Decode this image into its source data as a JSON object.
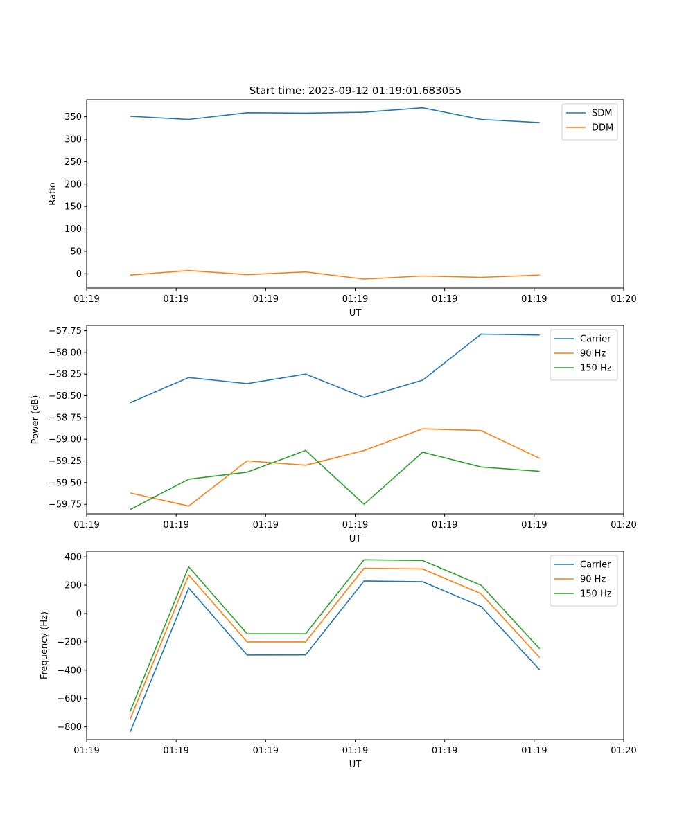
{
  "figure_title": "Start time: 2023-09-12 01:19:01.683055",
  "chart_data": [
    {
      "type": "line",
      "ylabel": "Ratio",
      "xlabel": "UT",
      "xlim": [
        0,
        9
      ],
      "ylim": [
        -32,
        388
      ],
      "yticks": [
        0,
        50,
        100,
        150,
        200,
        250,
        300,
        350
      ],
      "ytick_labels": [
        "0",
        "50",
        "100",
        "150",
        "200",
        "250",
        "300",
        "350"
      ],
      "xticks": [
        0,
        1.5,
        3,
        4.5,
        6,
        7.5,
        9
      ],
      "xtick_labels": [
        "01:19",
        "01:19",
        "01:19",
        "01:19",
        "01:19",
        "01:19",
        "01:20"
      ],
      "x": [
        0.73,
        1.71,
        2.69,
        3.67,
        4.65,
        5.63,
        6.61,
        7.59
      ],
      "legend_position": "top-right",
      "series": [
        {
          "name": "SDM",
          "color": "#1f77b4",
          "values": [
            351,
            344,
            359,
            358,
            360,
            370,
            344,
            337
          ]
        },
        {
          "name": "DDM",
          "color": "#ff7f0e",
          "values": [
            -3,
            7,
            -2,
            4,
            -12,
            -5,
            -8,
            -3
          ]
        }
      ]
    },
    {
      "type": "line",
      "ylabel": "Power (dB)",
      "xlabel": "UT",
      "xlim": [
        0,
        9
      ],
      "ylim": [
        -59.86,
        -57.69
      ],
      "yticks": [
        -59.75,
        -59.5,
        -59.25,
        -59.0,
        -58.75,
        -58.5,
        -58.25,
        -58.0,
        -57.75
      ],
      "ytick_labels": [
        "−59.75",
        "−59.50",
        "−59.25",
        "−59.00",
        "−58.75",
        "−58.50",
        "−58.25",
        "−58.00",
        "−57.75"
      ],
      "xticks": [
        0,
        1.5,
        3,
        4.5,
        6,
        7.5,
        9
      ],
      "xtick_labels": [
        "01:19",
        "01:19",
        "01:19",
        "01:19",
        "01:19",
        "01:19",
        "01:20"
      ],
      "x": [
        0.73,
        1.71,
        2.69,
        3.67,
        4.65,
        5.63,
        6.61,
        7.59
      ],
      "legend_position": "top-right",
      "series": [
        {
          "name": "Carrier",
          "color": "#1f77b4",
          "values": [
            -58.58,
            -58.29,
            -58.36,
            -58.25,
            -58.52,
            -58.32,
            -57.79,
            -57.8
          ]
        },
        {
          "name": "90 Hz",
          "color": "#ff7f0e",
          "values": [
            -59.62,
            -59.77,
            -59.25,
            -59.3,
            -59.13,
            -58.88,
            -58.9,
            -59.22
          ]
        },
        {
          "name": "150 Hz",
          "color": "#2ca02c",
          "values": [
            -59.81,
            -59.46,
            -59.38,
            -59.13,
            -59.75,
            -59.15,
            -59.32,
            -59.37
          ]
        }
      ]
    },
    {
      "type": "line",
      "ylabel": "Frequency (Hz)",
      "xlabel": "UT",
      "xlim": [
        0,
        9
      ],
      "ylim": [
        -890,
        440
      ],
      "yticks": [
        -800,
        -600,
        -400,
        -200,
        0,
        200,
        400
      ],
      "ytick_labels": [
        "−800",
        "−600",
        "−400",
        "−200",
        "0",
        "200",
        "400"
      ],
      "xticks": [
        0,
        1.5,
        3,
        4.5,
        6,
        7.5,
        9
      ],
      "xtick_labels": [
        "01:19",
        "01:19",
        "01:19",
        "01:19",
        "01:19",
        "01:19",
        "01:20"
      ],
      "x": [
        0.73,
        1.71,
        2.69,
        3.67,
        4.65,
        5.63,
        6.61,
        7.59
      ],
      "legend_position": "top-right",
      "series": [
        {
          "name": "Carrier",
          "color": "#1f77b4",
          "values": [
            -835,
            180,
            -293,
            -292,
            230,
            225,
            50,
            -397
          ]
        },
        {
          "name": "90 Hz",
          "color": "#ff7f0e",
          "values": [
            -745,
            272,
            -200,
            -200,
            320,
            315,
            140,
            -310
          ]
        },
        {
          "name": "150 Hz",
          "color": "#2ca02c",
          "values": [
            -690,
            330,
            -143,
            -143,
            380,
            375,
            200,
            -248
          ]
        }
      ]
    }
  ]
}
